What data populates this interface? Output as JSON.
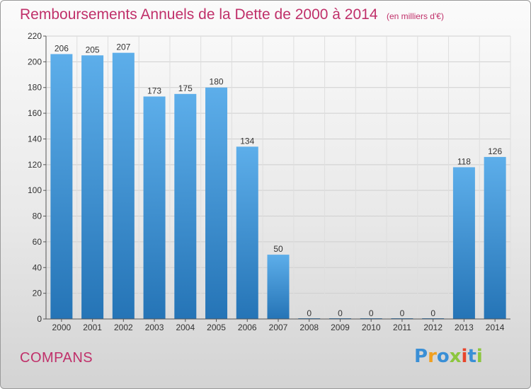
{
  "title": "Remboursements Annuels de la Dette de 2000 à 2014",
  "subtitle": "(en milliers d'€)",
  "commune": "COMPANS",
  "brand": {
    "text": "Proxiti",
    "letters": [
      {
        "ch": "P",
        "color": "#3a8fd6"
      },
      {
        "ch": "r",
        "color": "#f0a020"
      },
      {
        "ch": "o",
        "color": "#3a8fd6"
      },
      {
        "ch": "x",
        "color": "#8cc63e"
      },
      {
        "ch": "i",
        "color": "#e8452c"
      },
      {
        "ch": "t",
        "color": "#3a8fd6"
      },
      {
        "ch": "i",
        "color": "#8cc63e"
      }
    ]
  },
  "colors": {
    "bar_top": "#5daeea",
    "bar_bottom": "#2574b6",
    "title": "#c0306a"
  },
  "chart_data": {
    "type": "bar",
    "title": "Remboursements Annuels de la Dette de 2000 à 2014",
    "subtitle": "(en milliers d'€)",
    "categories": [
      "2000",
      "2001",
      "2002",
      "2003",
      "2004",
      "2005",
      "2006",
      "2007",
      "2008",
      "2009",
      "2010",
      "2011",
      "2012",
      "2013",
      "2014"
    ],
    "values": [
      206,
      205,
      207,
      173,
      175,
      180,
      134,
      50,
      0,
      0,
      0,
      0,
      0,
      118,
      126
    ],
    "ylim": [
      0,
      220
    ],
    "yticks": [
      0,
      20,
      40,
      60,
      80,
      100,
      120,
      140,
      160,
      180,
      200,
      220
    ],
    "grid": true
  }
}
